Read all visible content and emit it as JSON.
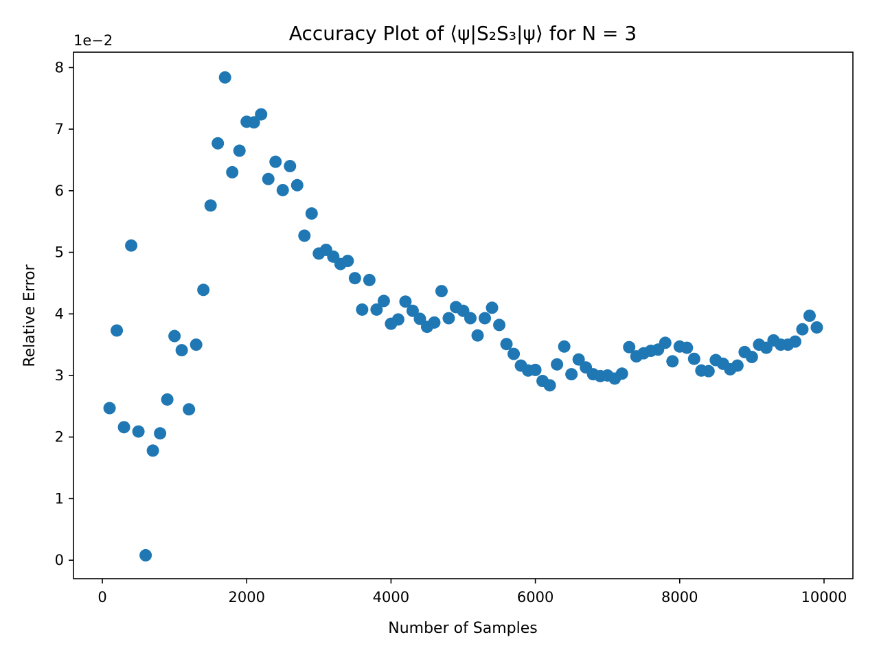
{
  "chart_data": {
    "type": "scatter",
    "title": "Accuracy Plot of ⟨ψ|S₂S₃|ψ⟩ for N = 3",
    "xlabel": "Number of Samples",
    "ylabel": "Relative Error",
    "y_offset_label": "1e−2",
    "xlim": [
      -400,
      10400
    ],
    "ylim": [
      -0.3,
      8.25
    ],
    "xticks": [
      0,
      2000,
      4000,
      6000,
      8000,
      10000
    ],
    "yticks": [
      0,
      1,
      2,
      3,
      4,
      5,
      6,
      7,
      8
    ],
    "grid": false,
    "marker_color": "#1f77b4",
    "series": [
      {
        "x": [
          100,
          200,
          300,
          400,
          500,
          600,
          700,
          800,
          900,
          1000,
          1100,
          1200,
          1300,
          1400,
          1500,
          1600,
          1700,
          1800,
          1900,
          2000,
          2100,
          2200,
          2300,
          2400,
          2500,
          2600,
          2700,
          2800,
          2900,
          3000,
          3100,
          3200,
          3300,
          3400,
          3500,
          3600,
          3700,
          3800,
          3900,
          4000,
          4100,
          4200,
          4300,
          4400,
          4500,
          4600,
          4700,
          4800,
          4900,
          5000,
          5100,
          5200,
          5300,
          5400,
          5500,
          5600,
          5700,
          5800,
          5900,
          6000,
          6100,
          6200,
          6300,
          6400,
          6500,
          6600,
          6700,
          6800,
          6900,
          7000,
          7100,
          7200,
          7300,
          7400,
          7500,
          7600,
          7700,
          7800,
          7900,
          8000,
          8100,
          8200,
          8300,
          8400,
          8500,
          8600,
          8700,
          8800,
          8900,
          9000,
          9100,
          9200,
          9300,
          9400,
          9500,
          9600,
          9700,
          9800,
          9900
        ],
        "y": [
          2.47,
          3.73,
          2.16,
          5.11,
          2.09,
          0.08,
          1.78,
          2.06,
          2.61,
          3.64,
          3.41,
          2.45,
          3.5,
          4.39,
          5.76,
          6.77,
          7.84,
          6.3,
          6.65,
          7.12,
          7.11,
          7.24,
          6.19,
          6.47,
          6.01,
          6.4,
          6.09,
          5.27,
          5.63,
          4.98,
          5.04,
          4.93,
          4.81,
          4.86,
          4.58,
          4.07,
          4.55,
          4.07,
          4.21,
          3.84,
          3.91,
          4.2,
          4.05,
          3.92,
          3.79,
          3.86,
          4.37,
          3.93,
          4.11,
          4.05,
          3.93,
          3.65,
          3.93,
          4.1,
          3.82,
          3.51,
          3.35,
          3.16,
          3.08,
          3.09,
          2.91,
          2.84,
          3.18,
          3.47,
          3.02,
          3.26,
          3.13,
          3.02,
          2.99,
          3.0,
          2.95,
          3.03,
          3.46,
          3.31,
          3.36,
          3.4,
          3.42,
          3.53,
          3.23,
          3.47,
          3.45,
          3.27,
          3.08,
          3.07,
          3.25,
          3.19,
          3.1,
          3.16,
          3.38,
          3.3,
          3.5,
          3.45,
          3.57,
          3.5,
          3.5,
          3.55,
          3.75,
          3.97,
          3.78
        ]
      }
    ]
  }
}
